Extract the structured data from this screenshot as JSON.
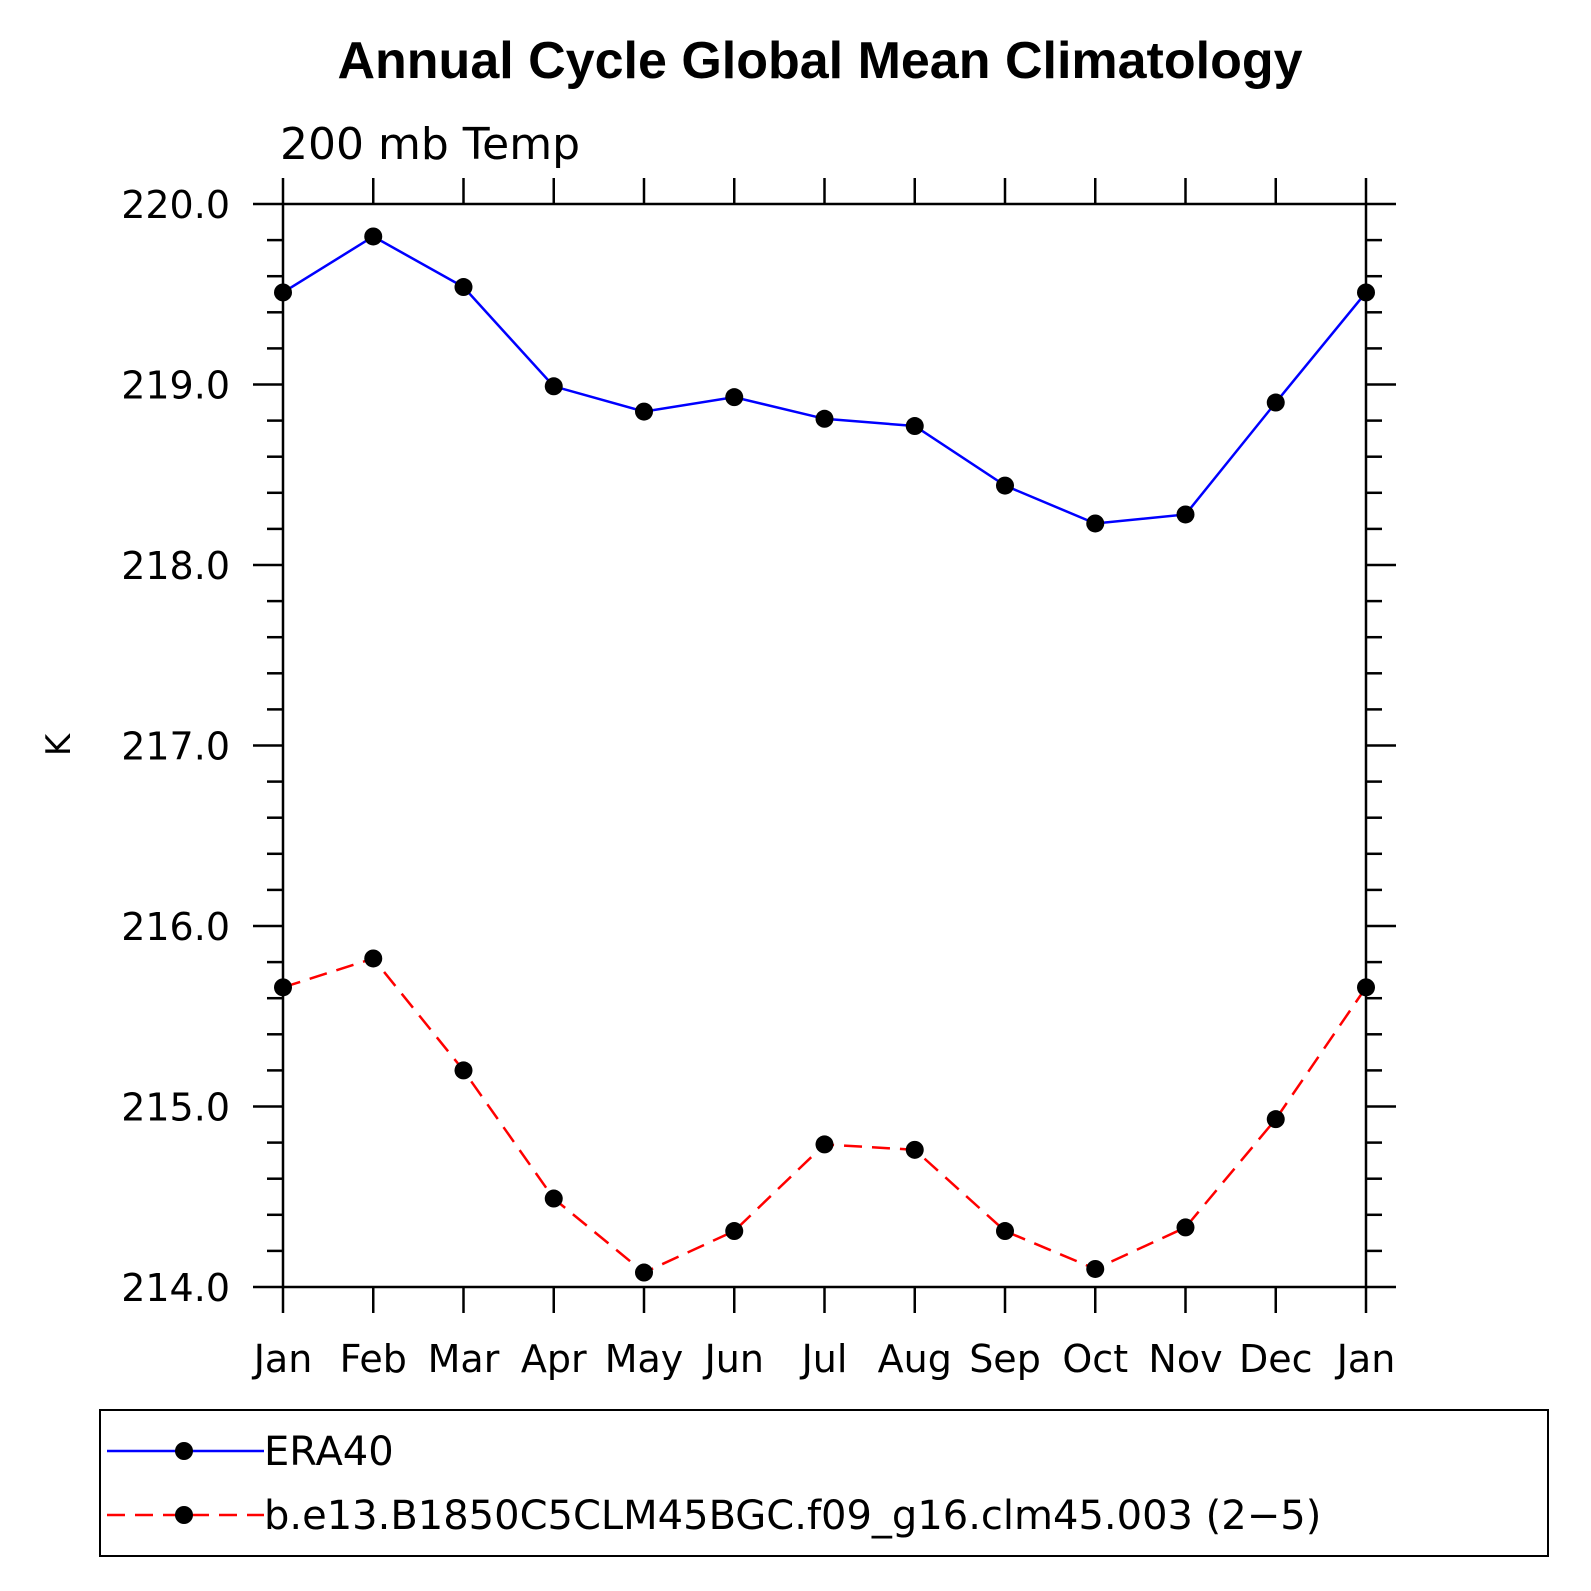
{
  "chart_data": {
    "type": "line",
    "title": "Annual Cycle Global Mean Climatology",
    "subtitle": "200 mb Temp",
    "ylabel": "K",
    "xlabel": "",
    "categories": [
      "Jan",
      "Feb",
      "Mar",
      "Apr",
      "May",
      "Jun",
      "Jul",
      "Aug",
      "Sep",
      "Oct",
      "Nov",
      "Dec",
      "Jan"
    ],
    "ylim": [
      214.0,
      220.0
    ],
    "yticks": [
      "214.0",
      "215.0",
      "216.0",
      "217.0",
      "218.0",
      "219.0",
      "220.0"
    ],
    "series": [
      {
        "name": "ERA40",
        "color": "#0000ff",
        "dash": "solid",
        "values": [
          219.51,
          219.82,
          219.54,
          218.99,
          218.85,
          218.93,
          218.81,
          218.77,
          218.44,
          218.23,
          218.28,
          218.9,
          219.51
        ]
      },
      {
        "name": "b.e13.B1850C5CLM45BGC.f09_g16.clm45.003 (2−5)",
        "color": "#ff0000",
        "dash": "dashed",
        "values": [
          215.66,
          215.82,
          215.2,
          214.49,
          214.08,
          214.31,
          214.79,
          214.76,
          214.31,
          214.1,
          214.33,
          214.93,
          215.66
        ]
      }
    ],
    "marker_color": "#000000",
    "legend_position": "bottom"
  }
}
